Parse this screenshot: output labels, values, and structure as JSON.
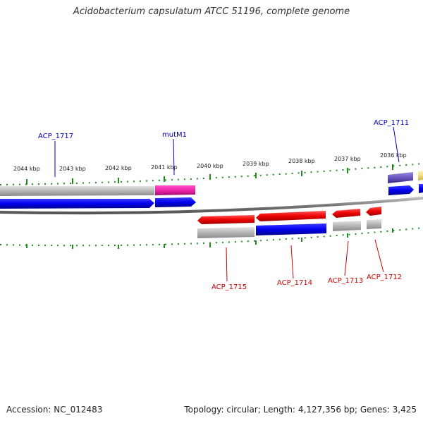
{
  "title": "Acidobacterium capsulatum ATCC 51196, complete genome",
  "accession": "Accession: NC_012483",
  "summary": "Topology: circular; Length: 4,127,356 bp; Genes: 3,425",
  "colors": {
    "upper_label": "#0000bb",
    "lower_label": "#cc0000",
    "tick": "#1f8a1f",
    "backbone": "#808080"
  },
  "ticks": [
    {
      "label": "2044 kbp"
    },
    {
      "label": "2043 kbp"
    },
    {
      "label": "2042 kbp"
    },
    {
      "label": "2041 kbp"
    },
    {
      "label": "2040 kbp"
    },
    {
      "label": "2039 kbp"
    },
    {
      "label": "2038 kbp"
    },
    {
      "label": "2037 kbp"
    },
    {
      "label": "2036 kbp"
    }
  ],
  "gene_labels_upper": [
    {
      "label": "ACP_1717"
    },
    {
      "label": "mutM1"
    },
    {
      "label": "ACP_1711"
    }
  ],
  "gene_labels_lower": [
    {
      "label": "ACP_1715"
    },
    {
      "label": "ACP_1714"
    },
    {
      "label": "ACP_1713"
    },
    {
      "label": "ACP_1712"
    }
  ]
}
